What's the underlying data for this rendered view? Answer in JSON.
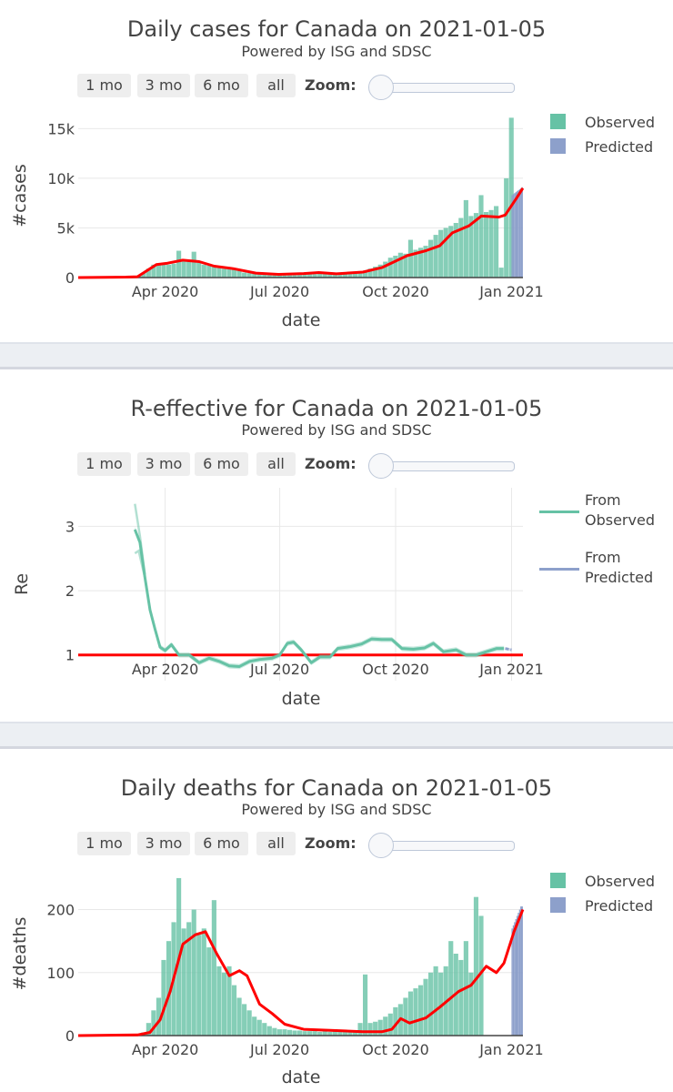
{
  "controls": {
    "buttons": [
      "1 mo",
      "3 mo",
      "6 mo",
      "all"
    ],
    "zoom_label": "Zoom:",
    "zoom_value": 0
  },
  "chart_data": [
    {
      "type": "bar",
      "title": "Daily cases for Canada on 2021-01-05",
      "subtitle": "Powered by ISG and SDSC",
      "xlabel": "date",
      "ylabel": "#cases",
      "ylim": [
        0,
        16500
      ],
      "grid": true,
      "legend": "top-right",
      "x_ticks": [
        {
          "date": "2020-04-01",
          "label": "Apr 2020"
        },
        {
          "date": "2020-07-01",
          "label": "Jul 2020"
        },
        {
          "date": "2020-10-01",
          "label": "Oct 2020"
        },
        {
          "date": "2021-01-01",
          "label": "Jan 2021"
        }
      ],
      "y_ticks": [
        {
          "value": 0,
          "label": "0"
        },
        {
          "value": 5000,
          "label": "5k"
        },
        {
          "value": 10000,
          "label": "10k"
        },
        {
          "value": 15000,
          "label": "15k"
        }
      ],
      "bars": [
        {
          "name": "Observed",
          "color": "#66c2a5",
          "start": "2020-01-23",
          "step_days": 4,
          "values": [
            0,
            0,
            2,
            3,
            5,
            8,
            10,
            12,
            20,
            30,
            40,
            60,
            200,
            500,
            900,
            1300,
            1400,
            1500,
            1300,
            1400,
            2700,
            1800,
            1700,
            2600,
            1500,
            1300,
            1200,
            1100,
            1000,
            900,
            950,
            800,
            700,
            500,
            450,
            400,
            350,
            330,
            300,
            300,
            320,
            330,
            380,
            450,
            500,
            450,
            400,
            350,
            380,
            400,
            350,
            380,
            420,
            450,
            500,
            600,
            650,
            700,
            900,
            1100,
            1300,
            1600,
            2000,
            2200,
            2500,
            2400,
            3800,
            2800,
            3000,
            3200,
            3800,
            4300,
            4800,
            5000,
            5200,
            5500,
            6000,
            7800,
            6200,
            6500,
            8300,
            6600,
            6800,
            7200,
            1000,
            10000,
            16100
          ]
        },
        {
          "name": "Predicted",
          "color": "#8da0cb",
          "start": "2021-01-01",
          "step_days": 1,
          "values": [
            8300,
            8400,
            8500,
            8600,
            8700,
            8800,
            8900,
            9000,
            9100
          ]
        }
      ],
      "trend": {
        "color": "#ff0000",
        "points": [
          [
            "2020-01-23",
            0
          ],
          [
            "2020-03-01",
            50
          ],
          [
            "2020-03-10",
            80
          ],
          [
            "2020-03-25",
            1300
          ],
          [
            "2020-04-03",
            1450
          ],
          [
            "2020-04-15",
            1750
          ],
          [
            "2020-04-28",
            1600
          ],
          [
            "2020-05-10",
            1150
          ],
          [
            "2020-05-25",
            900
          ],
          [
            "2020-06-12",
            450
          ],
          [
            "2020-06-30",
            320
          ],
          [
            "2020-07-20",
            400
          ],
          [
            "2020-08-01",
            500
          ],
          [
            "2020-08-15",
            380
          ],
          [
            "2020-09-05",
            550
          ],
          [
            "2020-09-20",
            1000
          ],
          [
            "2020-10-10",
            2200
          ],
          [
            "2020-10-25",
            2700
          ],
          [
            "2020-11-05",
            3200
          ],
          [
            "2020-11-15",
            4500
          ],
          [
            "2020-11-28",
            5200
          ],
          [
            "2020-12-08",
            6200
          ],
          [
            "2020-12-22",
            6100
          ],
          [
            "2020-12-27",
            6300
          ],
          [
            "2021-01-05",
            8000
          ],
          [
            "2021-01-10",
            9000
          ]
        ]
      }
    },
    {
      "type": "line",
      "title": "R-effective for Canada on 2021-01-05",
      "subtitle": "Powered by ISG and SDSC",
      "xlabel": "date",
      "ylabel": "Re",
      "ylim": [
        0.6,
        3.6
      ],
      "grid": true,
      "legend": "top-right",
      "x_ticks": [
        {
          "date": "2020-04-01",
          "label": "Apr 2020"
        },
        {
          "date": "2020-07-01",
          "label": "Jul 2020"
        },
        {
          "date": "2020-10-01",
          "label": "Oct 2020"
        },
        {
          "date": "2021-01-01",
          "label": "Jan 2021"
        }
      ],
      "y_ticks": [
        {
          "value": 1,
          "label": "1"
        },
        {
          "value": 2,
          "label": "2"
        },
        {
          "value": 3,
          "label": "3"
        }
      ],
      "series": [
        {
          "name": "From Observed",
          "color": "#66c2a5",
          "band": 0.04,
          "points": [
            [
              "2020-03-08",
              2.95
            ],
            [
              "2020-03-12",
              2.75
            ],
            [
              "2020-03-16",
              2.2
            ],
            [
              "2020-03-20",
              1.7
            ],
            [
              "2020-03-24",
              1.4
            ],
            [
              "2020-03-28",
              1.12
            ],
            [
              "2020-04-01",
              1.07
            ],
            [
              "2020-04-06",
              1.16
            ],
            [
              "2020-04-12",
              1.0
            ],
            [
              "2020-04-20",
              1.0
            ],
            [
              "2020-04-28",
              0.88
            ],
            [
              "2020-05-06",
              0.95
            ],
            [
              "2020-05-14",
              0.9
            ],
            [
              "2020-05-22",
              0.83
            ],
            [
              "2020-05-30",
              0.82
            ],
            [
              "2020-06-07",
              0.9
            ],
            [
              "2020-06-15",
              0.93
            ],
            [
              "2020-06-25",
              0.95
            ],
            [
              "2020-07-01",
              1.0
            ],
            [
              "2020-07-07",
              1.18
            ],
            [
              "2020-07-12",
              1.2
            ],
            [
              "2020-07-18",
              1.08
            ],
            [
              "2020-07-26",
              0.88
            ],
            [
              "2020-08-02",
              0.97
            ],
            [
              "2020-08-10",
              0.97
            ],
            [
              "2020-08-16",
              1.1
            ],
            [
              "2020-08-26",
              1.13
            ],
            [
              "2020-09-04",
              1.17
            ],
            [
              "2020-09-12",
              1.25
            ],
            [
              "2020-09-20",
              1.24
            ],
            [
              "2020-09-28",
              1.24
            ],
            [
              "2020-10-06",
              1.1
            ],
            [
              "2020-10-15",
              1.09
            ],
            [
              "2020-10-24",
              1.11
            ],
            [
              "2020-10-31",
              1.18
            ],
            [
              "2020-11-08",
              1.05
            ],
            [
              "2020-11-18",
              1.08
            ],
            [
              "2020-11-26",
              1.0
            ],
            [
              "2020-12-04",
              1.0
            ],
            [
              "2020-12-12",
              1.05
            ],
            [
              "2020-12-20",
              1.1
            ],
            [
              "2020-12-26",
              1.1
            ]
          ],
          "early_upper": [
            [
              "2020-03-08",
              3.35
            ],
            [
              "2020-03-12",
              2.85
            ],
            [
              "2020-03-16",
              2.25
            ]
          ],
          "early_lower": [
            [
              "2020-03-08",
              2.58
            ],
            [
              "2020-03-11",
              2.62
            ],
            [
              "2020-03-16",
              2.2
            ]
          ]
        },
        {
          "name": "From Predicted",
          "color": "#8da0cb",
          "band": 0.02,
          "points": [
            [
              "2020-12-27",
              1.1
            ],
            [
              "2021-01-01",
              1.08
            ]
          ]
        }
      ],
      "reference": {
        "value": 1,
        "color": "#ff0000"
      }
    },
    {
      "type": "bar",
      "title": "Daily deaths for Canada on 2021-01-05",
      "subtitle": "Powered by ISG and SDSC",
      "xlabel": "date",
      "ylabel": "#deaths",
      "ylim": [
        0,
        260
      ],
      "grid": true,
      "legend": "top-right",
      "x_ticks": [
        {
          "date": "2020-04-01",
          "label": "Apr 2020"
        },
        {
          "date": "2020-07-01",
          "label": "Jul 2020"
        },
        {
          "date": "2020-10-01",
          "label": "Oct 2020"
        },
        {
          "date": "2021-01-01",
          "label": "Jan 2021"
        }
      ],
      "y_ticks": [
        {
          "value": 0,
          "label": "0"
        },
        {
          "value": 100,
          "label": "100"
        },
        {
          "value": 200,
          "label": "200"
        }
      ],
      "bars": [
        {
          "name": "Observed",
          "color": "#66c2a5",
          "start": "2020-01-23",
          "step_days": 4,
          "values": [
            0,
            0,
            0,
            0,
            0,
            0,
            0,
            0,
            0,
            0,
            0,
            1,
            2,
            5,
            20,
            40,
            60,
            120,
            150,
            180,
            250,
            170,
            180,
            200,
            160,
            170,
            140,
            215,
            110,
            100,
            110,
            80,
            60,
            50,
            40,
            30,
            25,
            20,
            15,
            12,
            10,
            10,
            9,
            8,
            8,
            7,
            7,
            7,
            6,
            7,
            6,
            7,
            6,
            6,
            7,
            8,
            20,
            97,
            20,
            22,
            25,
            30,
            35,
            45,
            50,
            60,
            70,
            75,
            80,
            90,
            100,
            110,
            100,
            110,
            150,
            130,
            120,
            150,
            100,
            220,
            190
          ]
        },
        {
          "name": "Predicted",
          "color": "#8da0cb",
          "start": "2021-01-01",
          "step_days": 1,
          "values": [
            170,
            175,
            180,
            185,
            190,
            195,
            200,
            205,
            205
          ]
        }
      ],
      "trend": {
        "color": "#ff0000",
        "points": [
          [
            "2020-01-23",
            0
          ],
          [
            "2020-03-10",
            1
          ],
          [
            "2020-03-20",
            5
          ],
          [
            "2020-03-28",
            25
          ],
          [
            "2020-04-05",
            70
          ],
          [
            "2020-04-15",
            145
          ],
          [
            "2020-04-25",
            160
          ],
          [
            "2020-05-03",
            165
          ],
          [
            "2020-05-12",
            130
          ],
          [
            "2020-05-22",
            95
          ],
          [
            "2020-05-30",
            103
          ],
          [
            "2020-06-05",
            95
          ],
          [
            "2020-06-15",
            50
          ],
          [
            "2020-06-25",
            35
          ],
          [
            "2020-07-05",
            18
          ],
          [
            "2020-07-20",
            10
          ],
          [
            "2020-08-15",
            8
          ],
          [
            "2020-09-05",
            6
          ],
          [
            "2020-09-20",
            6
          ],
          [
            "2020-09-28",
            10
          ],
          [
            "2020-10-05",
            27
          ],
          [
            "2020-10-12",
            20
          ],
          [
            "2020-10-25",
            28
          ],
          [
            "2020-11-05",
            45
          ],
          [
            "2020-11-20",
            70
          ],
          [
            "2020-11-30",
            80
          ],
          [
            "2020-12-12",
            110
          ],
          [
            "2020-12-20",
            100
          ],
          [
            "2020-12-26",
            115
          ],
          [
            "2021-01-03",
            165
          ],
          [
            "2021-01-10",
            200
          ]
        ]
      }
    }
  ]
}
